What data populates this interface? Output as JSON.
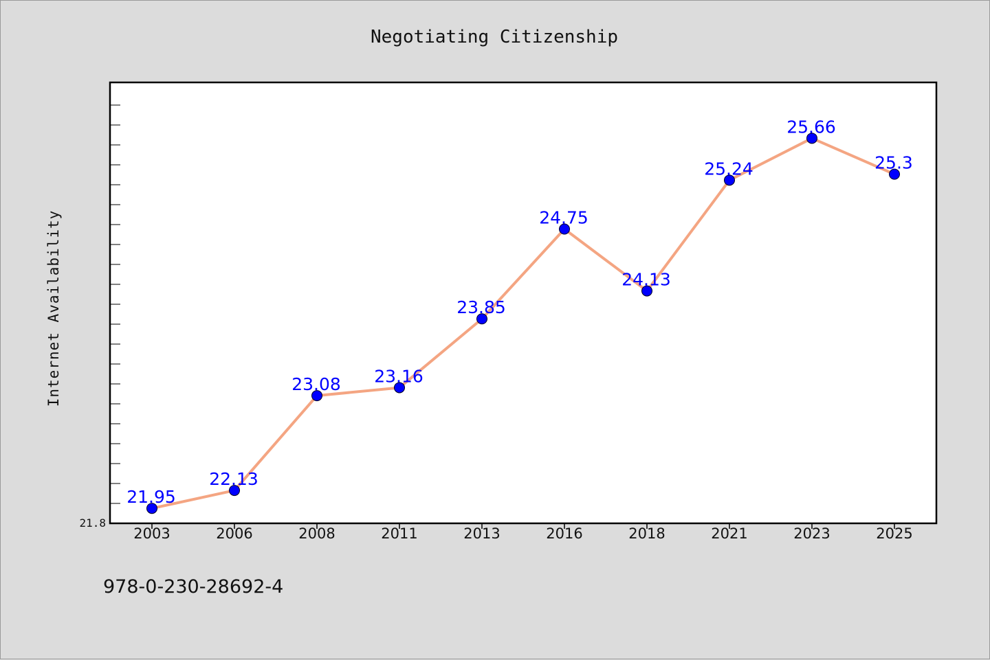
{
  "chart_data": {
    "type": "line",
    "title": "Negotiating Citizenship",
    "xlabel": "",
    "ylabel": "Internet Availability",
    "categories": [
      "2003",
      "2006",
      "2008",
      "2011",
      "2013",
      "2016",
      "2018",
      "2021",
      "2023",
      "2025"
    ],
    "series": [
      {
        "values": [
          21.95,
          22.13,
          23.08,
          23.16,
          23.85,
          24.75,
          24.13,
          25.24,
          25.66,
          25.3
        ],
        "labels": [
          "21.95",
          "22.13",
          "23.08",
          "23.16",
          "23.85",
          "24.75",
          "24.13",
          "25.24",
          "25.66",
          "25.3"
        ]
      }
    ],
    "ylim": [
      21.8,
      26.22
    ],
    "ytick_labels": [
      "21.8"
    ],
    "grid": false,
    "line_color": "#f4a582",
    "marker_color": "#0000ff",
    "label_color": "#0000ff"
  },
  "footer": {
    "isbn": "978-0-230-28692-4"
  }
}
